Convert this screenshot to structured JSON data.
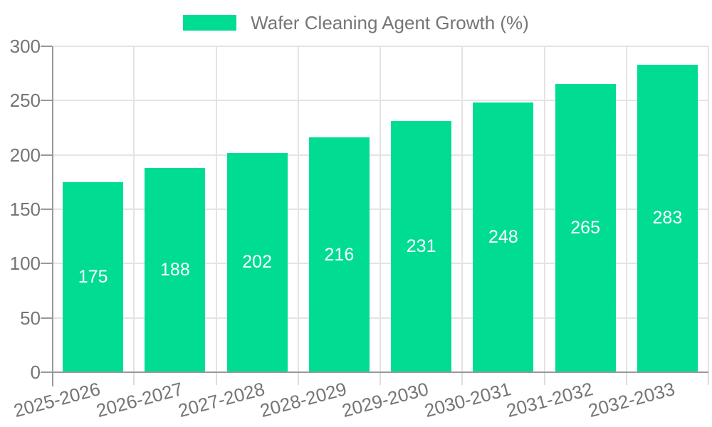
{
  "legend": {
    "label": "Wafer Cleaning Agent Growth (%)"
  },
  "chart_data": {
    "type": "bar",
    "title": "Wafer Cleaning Agent Growth (%)",
    "categories": [
      "2025-2026",
      "2026-2027",
      "2027-2028",
      "2028-2029",
      "2029-2030",
      "2030-2031",
      "2031-2032",
      "2032-2033"
    ],
    "values": [
      175,
      188,
      202,
      216,
      231,
      248,
      265,
      283
    ],
    "xlabel": "",
    "ylabel": "",
    "ylim": [
      0,
      300
    ],
    "ytick_interval": 50,
    "ytick_labels": [
      "0",
      "50",
      "100",
      "150",
      "200",
      "250",
      "300"
    ],
    "grid": true,
    "legend_position": "top",
    "xlabel_rotation_deg": -15,
    "colors": {
      "bar": "#00DC92",
      "value_label": "#ffffff",
      "axis_text": "#757575",
      "axis_line": "#999999",
      "gridline": "#e4e4e4"
    }
  }
}
